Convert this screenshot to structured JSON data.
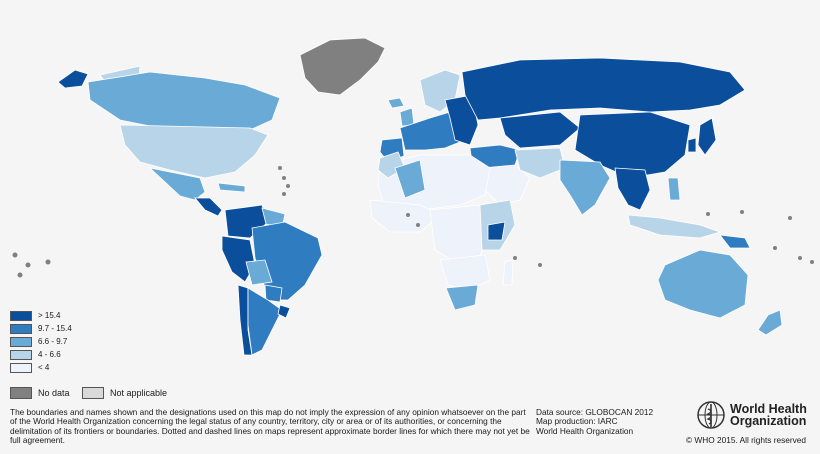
{
  "legend": {
    "classes": [
      {
        "label": ">  15.4",
        "color": "#0b4f9c"
      },
      {
        "label": "9.7  -  15.4",
        "color": "#2f7cc0"
      },
      {
        "label": "6.6  -  9.7",
        "color": "#6aaad6"
      },
      {
        "label": "4  -  6.6",
        "color": "#b8d4e8"
      },
      {
        "label": "<  4",
        "color": "#eef2fb"
      }
    ],
    "no_data": {
      "label": "No data",
      "color": "#808080"
    },
    "not_applicable": {
      "label": "Not applicable",
      "color": "#d9d9d9"
    }
  },
  "disclaimer": "The boundaries and names shown and the designations used on this map do not imply the expression of any opinion whatsoever on the part of the World Health Organization concerning the legal status of any country, territory, city or area or of its authorities, or concerning the delimitation of its frontiers or boundaries. Dotted and dashed lines on maps represent approximate border lines for which there may not yet be full agreement.",
  "source": {
    "line1": "Data source: GLOBOCAN 2012",
    "line2": "Map production: IARC",
    "line3": "World Health Organization"
  },
  "logo": {
    "line1": "World Health",
    "line2": "Organization"
  },
  "copyright": "© WHO 2015. All rights reserved"
}
